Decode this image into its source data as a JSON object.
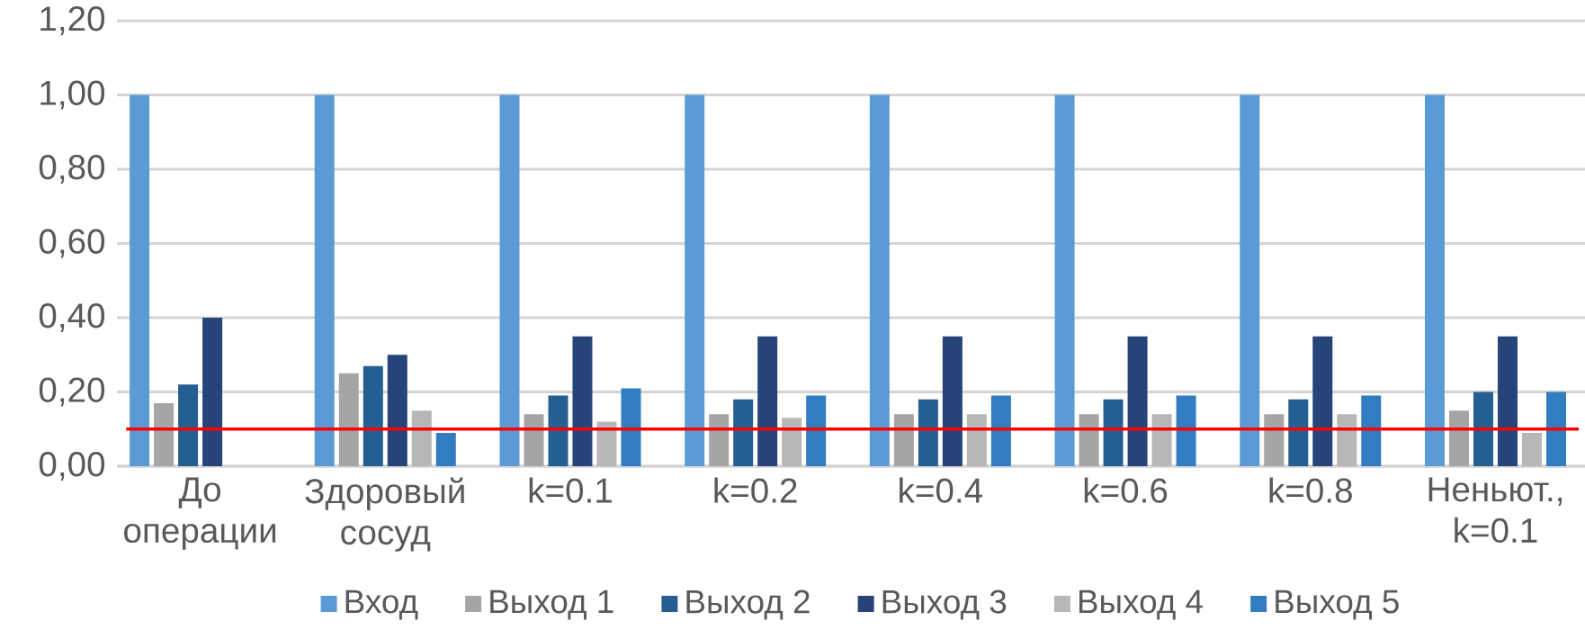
{
  "chart_data": {
    "type": "bar",
    "categories": [
      "До операции",
      "Здоровый сосуд",
      "k=0.1",
      "k=0.2",
      "k=0.4",
      "k=0.6",
      "k=0.8",
      "Неньют., k=0.1"
    ],
    "series": [
      {
        "name": "Вход",
        "color": "#5b9bd5",
        "values": [
          1,
          1,
          1,
          1,
          1,
          1,
          1,
          1
        ]
      },
      {
        "name": "Выход 1",
        "color": "#a5a5a5",
        "values": [
          0.17,
          0.25,
          0.14,
          0.14,
          0.14,
          0.14,
          0.14,
          0.15
        ]
      },
      {
        "name": "Выход 2",
        "color": "#255e91",
        "values": [
          0.22,
          0.27,
          0.19,
          0.18,
          0.18,
          0.18,
          0.18,
          0.2
        ]
      },
      {
        "name": "Выход 3",
        "color": "#264478",
        "values": [
          0.4,
          0.3,
          0.35,
          0.35,
          0.35,
          0.35,
          0.35,
          0.35
        ]
      },
      {
        "name": "Выход 4",
        "color": "#b7b7b7",
        "values": [
          null,
          0.15,
          0.12,
          0.13,
          0.14,
          0.14,
          0.14,
          0.09
        ]
      },
      {
        "name": "Выход 5",
        "color": "#327dc2",
        "values": [
          null,
          0.09,
          0.21,
          0.19,
          0.19,
          0.19,
          0.19,
          0.2
        ]
      }
    ],
    "ylim": [
      0,
      1.2
    ],
    "yticks": [
      {
        "value": 0,
        "label": "0,00"
      },
      {
        "value": 0.2,
        "label": "0,20"
      },
      {
        "value": 0.4,
        "label": "0,40"
      },
      {
        "value": 0.6,
        "label": "0,60"
      },
      {
        "value": 0.8,
        "label": "0,80"
      },
      {
        "value": 1.0,
        "label": "1,00"
      },
      {
        "value": 1.2,
        "label": "1,20"
      }
    ],
    "grid": "y",
    "legend": "bottom",
    "ref_lines": [
      {
        "axis": "y",
        "value": 0.1,
        "color": "#ff0000"
      }
    ]
  }
}
